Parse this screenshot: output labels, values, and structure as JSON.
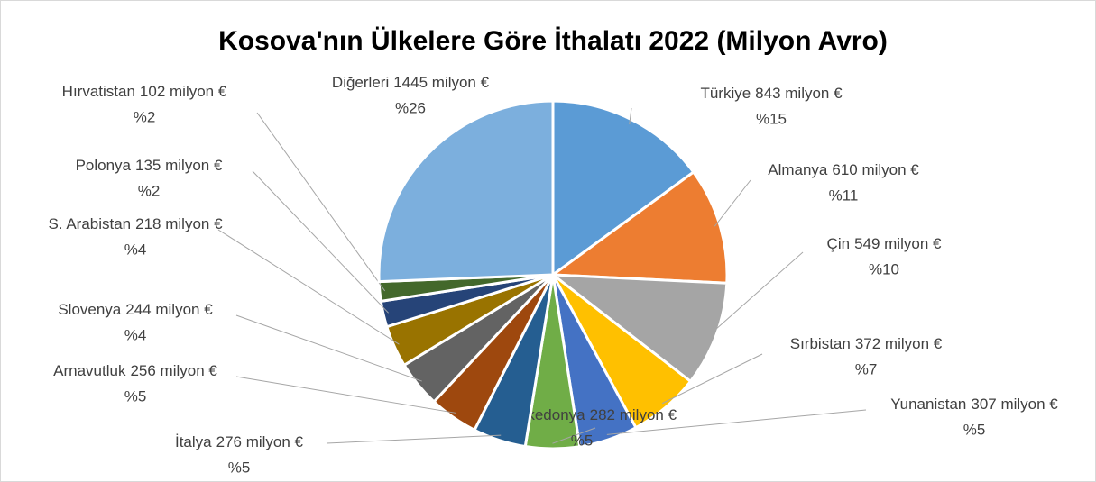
{
  "chart_data": {
    "type": "pie",
    "title": "Kosova'nın Ülkelere Göre İthalatı  2022 (Milyon Avro)",
    "categories": [
      "Türkiye",
      "Almanya",
      "Çin",
      "Sırbistan",
      "Yunanistan",
      "K. Makedonya",
      "İtalya",
      "Arnavutluk",
      "Slovenya",
      "S. Arabistan",
      "Polonya",
      "Hırvatistan",
      "Diğerleri"
    ],
    "values": [
      843,
      610,
      549,
      372,
      307,
      282,
      276,
      256,
      244,
      218,
      135,
      102,
      1445
    ],
    "value_labels": [
      "843 milyon €",
      "610 milyon €",
      "549 milyon €",
      "372 milyon €",
      "307 milyon €",
      "282 milyon €",
      "276 milyon €",
      "256 milyon €",
      "244 milyon €",
      "218 milyon €",
      "135 milyon €",
      "102 milyon €",
      "1445 milyon €"
    ],
    "percent_labels": [
      "%15",
      "%11",
      "%10",
      "%7",
      "%5",
      "%5",
      "%5",
      "%5",
      "%4",
      "%4",
      "%2",
      "%2",
      "%26"
    ],
    "colors": [
      "#5b9bd5",
      "#ed7d31",
      "#a5a5a5",
      "#ffc000",
      "#4472c4",
      "#70ad47",
      "#255e91",
      "#9e480e",
      "#636363",
      "#997300",
      "#264478",
      "#43682b",
      "#7cafdd"
    ]
  }
}
